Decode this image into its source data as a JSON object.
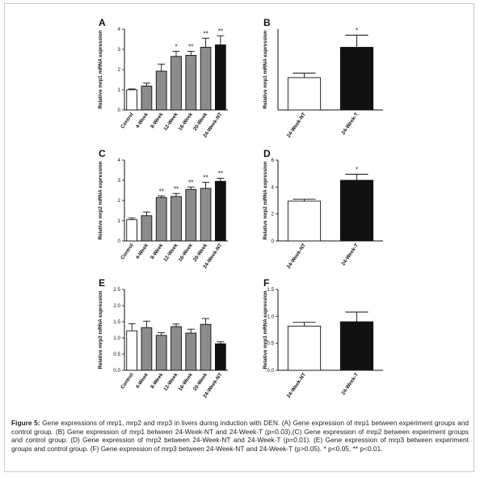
{
  "caption": {
    "label": "Figure 5:",
    "text": "Gene expressions of mrp1, mrp2 and mrp3 in livers during induction with DEN. (A) Gene expression of mrp1 between experiment groups and control group. (B) Gene expression of mrp1 between 24-Week-NT and 24-Week-T (p=0.03).(C) Gene expression of mrp2 between experiment groups and control group. (D) Gene expression of mrp2 between 24-Week-NT and 24-Week-T (p=0.01). (E) Gene expression of mrp3 between experiment groups and control group. (F) Gene expression of mrp3 between 24-Week-NT and 24-Week-T (p>0.05). * p<0.05, ** p<0.01."
  },
  "chart_data": [
    {
      "panel": "A",
      "type": "bar",
      "ylabel": "Relative mrp1 mRNA expression",
      "ylim": [
        0,
        4
      ],
      "yticks": [
        0,
        1,
        2,
        3,
        4
      ],
      "categories": [
        "Control",
        "4-Week",
        "8-Week",
        "12-Week",
        "16-Week",
        "20-Week",
        "24-Week-NT"
      ],
      "values": [
        1.0,
        1.18,
        1.92,
        2.65,
        2.7,
        3.1,
        3.22
      ],
      "errors": [
        0.04,
        0.15,
        0.35,
        0.25,
        0.2,
        0.45,
        0.45
      ],
      "annotations": [
        "",
        "",
        "",
        "*",
        "**",
        "**",
        "**"
      ],
      "colors": [
        "#ffffff",
        "#8c8c8c",
        "#8c8c8c",
        "#8c8c8c",
        "#8c8c8c",
        "#8c8c8c",
        "#111111"
      ]
    },
    {
      "panel": "B",
      "type": "bar",
      "ylabel": "Relative mrp1 mRNA expression",
      "ylim": [
        0,
        8
      ],
      "yticks": [],
      "categories": [
        "24-Week-NT",
        "24-Week-T"
      ],
      "values": [
        3.2,
        6.2
      ],
      "errors": [
        0.45,
        1.2
      ],
      "annotations": [
        "",
        "*"
      ],
      "colors": [
        "#ffffff",
        "#111111"
      ]
    },
    {
      "panel": "C",
      "type": "bar",
      "ylabel": "Relative mrp2 mRNA expression",
      "ylim": [
        0,
        4
      ],
      "yticks": [
        0,
        1,
        2,
        3,
        4
      ],
      "categories": [
        "Control",
        "4-Week",
        "8-Week",
        "12-Week",
        "16-Week",
        "20-Week",
        "24-Week-NT"
      ],
      "values": [
        1.05,
        1.25,
        2.15,
        2.2,
        2.55,
        2.6,
        2.95
      ],
      "errors": [
        0.08,
        0.18,
        0.08,
        0.15,
        0.12,
        0.3,
        0.15
      ],
      "annotations": [
        "",
        "",
        "**",
        "**",
        "**",
        "**",
        "**"
      ],
      "colors": [
        "#ffffff",
        "#8c8c8c",
        "#8c8c8c",
        "#8c8c8c",
        "#8c8c8c",
        "#8c8c8c",
        "#111111"
      ]
    },
    {
      "panel": "D",
      "type": "bar",
      "ylabel": "Relative mrp2 mRNA expression",
      "ylim": [
        0,
        6
      ],
      "yticks": [
        0,
        2,
        4,
        6
      ],
      "categories": [
        "24-Week-NT",
        "24-Week-T"
      ],
      "values": [
        2.95,
        4.5
      ],
      "errors": [
        0.15,
        0.45
      ],
      "annotations": [
        "",
        "*"
      ],
      "colors": [
        "#ffffff",
        "#111111"
      ]
    },
    {
      "panel": "E",
      "type": "bar",
      "ylabel": "Relative mrp3 mRNA expression",
      "ylim": [
        0,
        2.5
      ],
      "yticks": [
        0.0,
        0.5,
        1.0,
        1.5,
        2.0,
        2.5
      ],
      "categories": [
        "Control",
        "4-Week",
        "8-Week",
        "12-Week",
        "16-Week",
        "20-Week",
        "24-Week-NT"
      ],
      "values": [
        1.22,
        1.32,
        1.08,
        1.35,
        1.15,
        1.42,
        0.82
      ],
      "errors": [
        0.22,
        0.2,
        0.08,
        0.08,
        0.12,
        0.18,
        0.06
      ],
      "annotations": [
        "",
        "",
        "",
        "",
        "",
        "",
        ""
      ],
      "colors": [
        "#ffffff",
        "#8c8c8c",
        "#8c8c8c",
        "#8c8c8c",
        "#8c8c8c",
        "#8c8c8c",
        "#111111"
      ]
    },
    {
      "panel": "F",
      "type": "bar",
      "ylabel": "Relative mrp3 mRNA expression",
      "ylim": [
        0,
        1.5
      ],
      "yticks": [
        0.0,
        0.5,
        1.0,
        1.5
      ],
      "categories": [
        "24-Week-NT",
        "24-Week-T"
      ],
      "values": [
        0.82,
        0.9
      ],
      "errors": [
        0.07,
        0.18
      ],
      "annotations": [
        "",
        ""
      ],
      "colors": [
        "#ffffff",
        "#111111"
      ]
    }
  ]
}
